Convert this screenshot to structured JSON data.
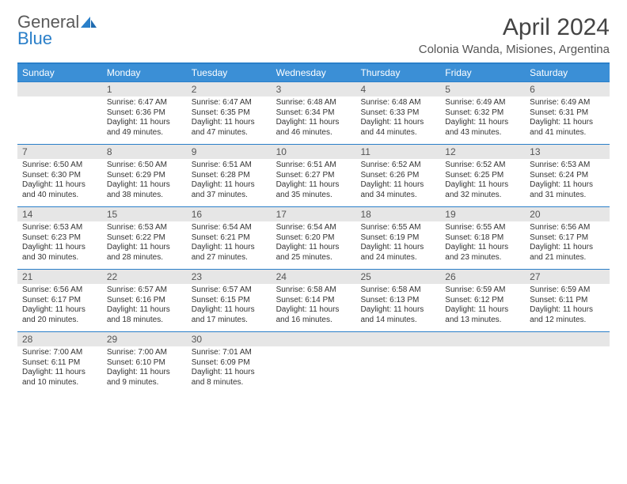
{
  "logo": {
    "text1": "General",
    "text2": "Blue"
  },
  "title": "April 2024",
  "location": "Colonia Wanda, Misiones, Argentina",
  "colors": {
    "header_bg": "#3b8fd6",
    "border": "#2a7fc9",
    "daynum_bg": "#e6e6e6",
    "text": "#333333"
  },
  "weekdays": [
    "Sunday",
    "Monday",
    "Tuesday",
    "Wednesday",
    "Thursday",
    "Friday",
    "Saturday"
  ],
  "weeks": [
    [
      {
        "n": "",
        "sr": "",
        "ss": "",
        "dl": ""
      },
      {
        "n": "1",
        "sr": "Sunrise: 6:47 AM",
        "ss": "Sunset: 6:36 PM",
        "dl": "Daylight: 11 hours and 49 minutes."
      },
      {
        "n": "2",
        "sr": "Sunrise: 6:47 AM",
        "ss": "Sunset: 6:35 PM",
        "dl": "Daylight: 11 hours and 47 minutes."
      },
      {
        "n": "3",
        "sr": "Sunrise: 6:48 AM",
        "ss": "Sunset: 6:34 PM",
        "dl": "Daylight: 11 hours and 46 minutes."
      },
      {
        "n": "4",
        "sr": "Sunrise: 6:48 AM",
        "ss": "Sunset: 6:33 PM",
        "dl": "Daylight: 11 hours and 44 minutes."
      },
      {
        "n": "5",
        "sr": "Sunrise: 6:49 AM",
        "ss": "Sunset: 6:32 PM",
        "dl": "Daylight: 11 hours and 43 minutes."
      },
      {
        "n": "6",
        "sr": "Sunrise: 6:49 AM",
        "ss": "Sunset: 6:31 PM",
        "dl": "Daylight: 11 hours and 41 minutes."
      }
    ],
    [
      {
        "n": "7",
        "sr": "Sunrise: 6:50 AM",
        "ss": "Sunset: 6:30 PM",
        "dl": "Daylight: 11 hours and 40 minutes."
      },
      {
        "n": "8",
        "sr": "Sunrise: 6:50 AM",
        "ss": "Sunset: 6:29 PM",
        "dl": "Daylight: 11 hours and 38 minutes."
      },
      {
        "n": "9",
        "sr": "Sunrise: 6:51 AM",
        "ss": "Sunset: 6:28 PM",
        "dl": "Daylight: 11 hours and 37 minutes."
      },
      {
        "n": "10",
        "sr": "Sunrise: 6:51 AM",
        "ss": "Sunset: 6:27 PM",
        "dl": "Daylight: 11 hours and 35 minutes."
      },
      {
        "n": "11",
        "sr": "Sunrise: 6:52 AM",
        "ss": "Sunset: 6:26 PM",
        "dl": "Daylight: 11 hours and 34 minutes."
      },
      {
        "n": "12",
        "sr": "Sunrise: 6:52 AM",
        "ss": "Sunset: 6:25 PM",
        "dl": "Daylight: 11 hours and 32 minutes."
      },
      {
        "n": "13",
        "sr": "Sunrise: 6:53 AM",
        "ss": "Sunset: 6:24 PM",
        "dl": "Daylight: 11 hours and 31 minutes."
      }
    ],
    [
      {
        "n": "14",
        "sr": "Sunrise: 6:53 AM",
        "ss": "Sunset: 6:23 PM",
        "dl": "Daylight: 11 hours and 30 minutes."
      },
      {
        "n": "15",
        "sr": "Sunrise: 6:53 AM",
        "ss": "Sunset: 6:22 PM",
        "dl": "Daylight: 11 hours and 28 minutes."
      },
      {
        "n": "16",
        "sr": "Sunrise: 6:54 AM",
        "ss": "Sunset: 6:21 PM",
        "dl": "Daylight: 11 hours and 27 minutes."
      },
      {
        "n": "17",
        "sr": "Sunrise: 6:54 AM",
        "ss": "Sunset: 6:20 PM",
        "dl": "Daylight: 11 hours and 25 minutes."
      },
      {
        "n": "18",
        "sr": "Sunrise: 6:55 AM",
        "ss": "Sunset: 6:19 PM",
        "dl": "Daylight: 11 hours and 24 minutes."
      },
      {
        "n": "19",
        "sr": "Sunrise: 6:55 AM",
        "ss": "Sunset: 6:18 PM",
        "dl": "Daylight: 11 hours and 23 minutes."
      },
      {
        "n": "20",
        "sr": "Sunrise: 6:56 AM",
        "ss": "Sunset: 6:17 PM",
        "dl": "Daylight: 11 hours and 21 minutes."
      }
    ],
    [
      {
        "n": "21",
        "sr": "Sunrise: 6:56 AM",
        "ss": "Sunset: 6:17 PM",
        "dl": "Daylight: 11 hours and 20 minutes."
      },
      {
        "n": "22",
        "sr": "Sunrise: 6:57 AM",
        "ss": "Sunset: 6:16 PM",
        "dl": "Daylight: 11 hours and 18 minutes."
      },
      {
        "n": "23",
        "sr": "Sunrise: 6:57 AM",
        "ss": "Sunset: 6:15 PM",
        "dl": "Daylight: 11 hours and 17 minutes."
      },
      {
        "n": "24",
        "sr": "Sunrise: 6:58 AM",
        "ss": "Sunset: 6:14 PM",
        "dl": "Daylight: 11 hours and 16 minutes."
      },
      {
        "n": "25",
        "sr": "Sunrise: 6:58 AM",
        "ss": "Sunset: 6:13 PM",
        "dl": "Daylight: 11 hours and 14 minutes."
      },
      {
        "n": "26",
        "sr": "Sunrise: 6:59 AM",
        "ss": "Sunset: 6:12 PM",
        "dl": "Daylight: 11 hours and 13 minutes."
      },
      {
        "n": "27",
        "sr": "Sunrise: 6:59 AM",
        "ss": "Sunset: 6:11 PM",
        "dl": "Daylight: 11 hours and 12 minutes."
      }
    ],
    [
      {
        "n": "28",
        "sr": "Sunrise: 7:00 AM",
        "ss": "Sunset: 6:11 PM",
        "dl": "Daylight: 11 hours and 10 minutes."
      },
      {
        "n": "29",
        "sr": "Sunrise: 7:00 AM",
        "ss": "Sunset: 6:10 PM",
        "dl": "Daylight: 11 hours and 9 minutes."
      },
      {
        "n": "30",
        "sr": "Sunrise: 7:01 AM",
        "ss": "Sunset: 6:09 PM",
        "dl": "Daylight: 11 hours and 8 minutes."
      },
      {
        "n": "",
        "sr": "",
        "ss": "",
        "dl": ""
      },
      {
        "n": "",
        "sr": "",
        "ss": "",
        "dl": ""
      },
      {
        "n": "",
        "sr": "",
        "ss": "",
        "dl": ""
      },
      {
        "n": "",
        "sr": "",
        "ss": "",
        "dl": ""
      }
    ]
  ]
}
